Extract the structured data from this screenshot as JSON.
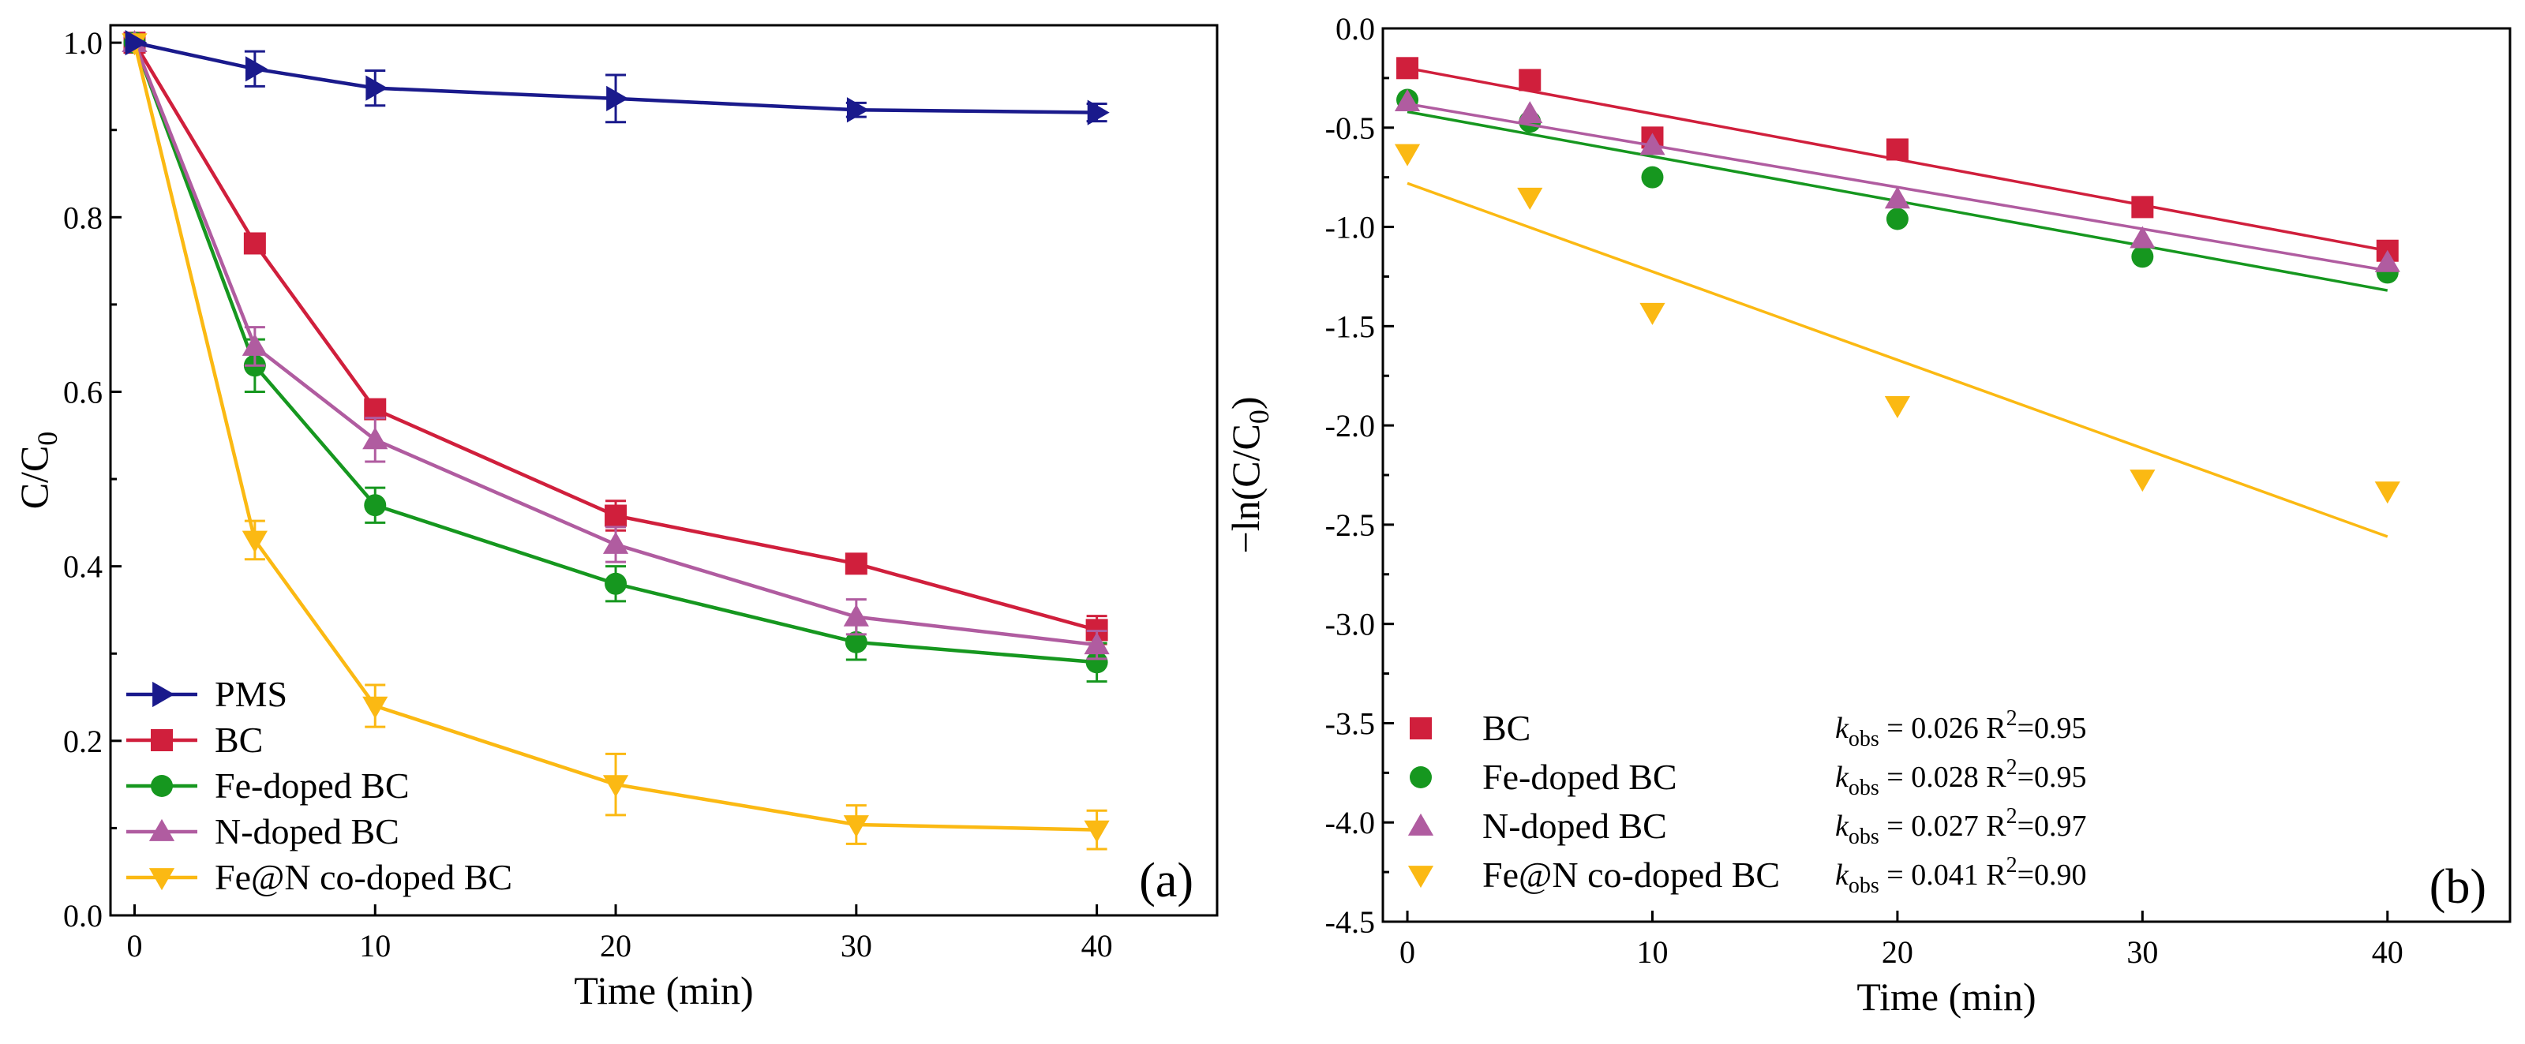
{
  "colors": {
    "PMS": "#1a1a8c",
    "BC": "#d01f3c",
    "Fe-doped BC": "#16971f",
    "N-doped BC": "#b05ca0",
    "Fe@N co-doped BC": "#fbb913"
  },
  "chart_data": [
    {
      "type": "line",
      "panel_label": "(a)",
      "xlabel": "Time (min)",
      "ylabel": {
        "main": "C/C",
        "sub": "0"
      },
      "xlim": [
        -1,
        45
      ],
      "ylim": [
        0.0,
        1.02
      ],
      "x_ticks": [
        "0",
        "10",
        "20",
        "30",
        "40"
      ],
      "y_ticks": [
        "0.0",
        "0.2",
        "0.4",
        "0.6",
        "0.8",
        "1.0"
      ],
      "grid": false,
      "legend_position": "bottom-left",
      "x": [
        0,
        5,
        10,
        20,
        30,
        40
      ],
      "series": [
        {
          "name": "PMS",
          "marker": "triangle-right",
          "values": [
            1.0,
            0.97,
            0.948,
            0.936,
            0.923,
            0.92
          ],
          "errors": [
            0.0,
            0.02,
            0.02,
            0.027,
            0.008,
            0.01
          ]
        },
        {
          "name": "BC",
          "marker": "square",
          "values": [
            1.0,
            0.77,
            0.58,
            0.458,
            0.403,
            0.327
          ],
          "errors": [
            0.0,
            0.01,
            0.01,
            0.017,
            0.01,
            0.016
          ]
        },
        {
          "name": "Fe-doped BC",
          "marker": "circle",
          "values": [
            1.0,
            0.63,
            0.47,
            0.38,
            0.313,
            0.29
          ],
          "errors": [
            0.0,
            0.03,
            0.02,
            0.02,
            0.02,
            0.022
          ]
        },
        {
          "name": "N-doped BC",
          "marker": "triangle-up",
          "values": [
            1.0,
            0.652,
            0.545,
            0.425,
            0.342,
            0.31
          ],
          "errors": [
            0.0,
            0.022,
            0.025,
            0.02,
            0.02,
            0.016
          ]
        },
        {
          "name": "Fe@N co-doped BC",
          "marker": "triangle-down",
          "values": [
            1.0,
            0.43,
            0.24,
            0.15,
            0.104,
            0.098
          ],
          "errors": [
            0.0,
            0.022,
            0.024,
            0.035,
            0.022,
            0.022
          ]
        }
      ]
    },
    {
      "type": "scatter",
      "panel_label": "(b)",
      "xlabel": "Time (min)",
      "ylabel": {
        "main": "−ln(C/C",
        "sub": "0",
        "close": ")"
      },
      "xlim": [
        -1,
        45
      ],
      "ylim": [
        -4.5,
        0.0
      ],
      "x_ticks": [
        "0",
        "10",
        "20",
        "30",
        "40"
      ],
      "y_ticks": [
        "0.0",
        "-0.5",
        "-1.0",
        "-1.5",
        "-2.0",
        "-2.5",
        "-3.0",
        "-3.5",
        "-4.0",
        "-4.5"
      ],
      "grid": false,
      "legend_position": "bottom-left",
      "x": [
        0,
        5,
        10,
        20,
        30,
        40
      ],
      "series": [
        {
          "name": "BC",
          "marker": "square",
          "values": [
            -0.2,
            -0.26,
            -0.55,
            -0.61,
            -0.9,
            -1.12
          ],
          "fit": [
            -0.2,
            -1.12
          ],
          "k_obs": "0.026",
          "r2": "0.95"
        },
        {
          "name": "Fe-doped BC",
          "marker": "circle",
          "values": [
            -0.36,
            -0.47,
            -0.75,
            -0.96,
            -1.15,
            -1.23
          ],
          "fit": [
            -0.42,
            -1.32
          ],
          "k_obs": "0.028",
          "r2": "0.95"
        },
        {
          "name": "N-doped BC",
          "marker": "triangle-up",
          "values": [
            -0.37,
            -0.43,
            -0.59,
            -0.86,
            -1.06,
            -1.18
          ],
          "fit": [
            -0.38,
            -1.22
          ],
          "k_obs": "0.027",
          "r2": "0.97"
        },
        {
          "name": "Fe@N co-doped BC",
          "marker": "triangle-down",
          "values": [
            -0.63,
            -0.85,
            -1.43,
            -1.9,
            -2.27,
            -2.33
          ],
          "fit": [
            -0.78,
            -2.56
          ],
          "k_obs": "0.041",
          "r2": "0.90"
        }
      ],
      "annotation": {
        "k_symbol": "k",
        "k_sub": "obs",
        "eq": " = ",
        "r_label": "R",
        "r_sup": "2",
        "r_eq": "="
      }
    }
  ]
}
